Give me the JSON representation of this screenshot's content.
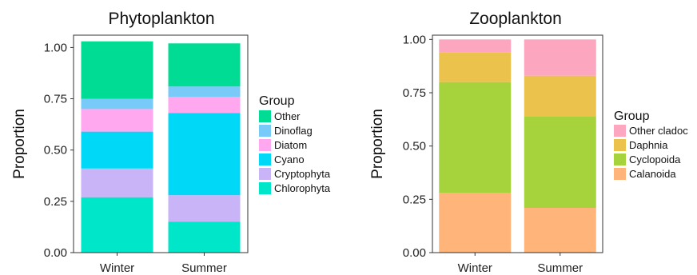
{
  "chart_data": [
    {
      "type": "bar",
      "stacked": true,
      "title": "Phytoplankton",
      "xlabel": "",
      "ylabel": "Proportion",
      "ylim": [
        0,
        1.06
      ],
      "yticks": [
        "0.00",
        "0.25",
        "0.50",
        "0.75",
        "1.00"
      ],
      "categories": [
        "Winter",
        "Summer"
      ],
      "legend": {
        "title": "Group",
        "placement": "right"
      },
      "series": [
        {
          "name": "Chlorophyta",
          "color": "#00E6C8",
          "values": [
            0.27,
            0.15
          ]
        },
        {
          "name": "Cryptophyta",
          "color": "#C8B4F7",
          "values": [
            0.14,
            0.13
          ]
        },
        {
          "name": "Cyano",
          "color": "#00D8F8",
          "values": [
            0.18,
            0.4
          ]
        },
        {
          "name": "Diatom",
          "color": "#FFA8F0",
          "values": [
            0.11,
            0.08
          ]
        },
        {
          "name": "Dinoflag",
          "color": "#78CAF8",
          "values": [
            0.05,
            0.05
          ]
        },
        {
          "name": "Other",
          "color": "#00DC94",
          "values": [
            0.28,
            0.21
          ]
        }
      ]
    },
    {
      "type": "bar",
      "stacked": true,
      "title": "Zooplankton",
      "xlabel": "",
      "ylabel": "Proportion",
      "ylim": [
        0,
        1.02
      ],
      "yticks": [
        "0.00",
        "0.25",
        "0.50",
        "0.75",
        "1.00"
      ],
      "categories": [
        "Winter",
        "Summer"
      ],
      "legend": {
        "title": "Group",
        "placement": "right"
      },
      "series": [
        {
          "name": "Calanoida",
          "color": "#FFB47A",
          "values": [
            0.28,
            0.21
          ]
        },
        {
          "name": "Cyclopoida",
          "color": "#A6D23C",
          "values": [
            0.52,
            0.43
          ]
        },
        {
          "name": "Daphnia",
          "color": "#EBC24C",
          "values": [
            0.14,
            0.19
          ]
        },
        {
          "name": "Other cladoc",
          "color": "#FCA6C0",
          "values": [
            0.06,
            0.17
          ]
        }
      ]
    }
  ]
}
